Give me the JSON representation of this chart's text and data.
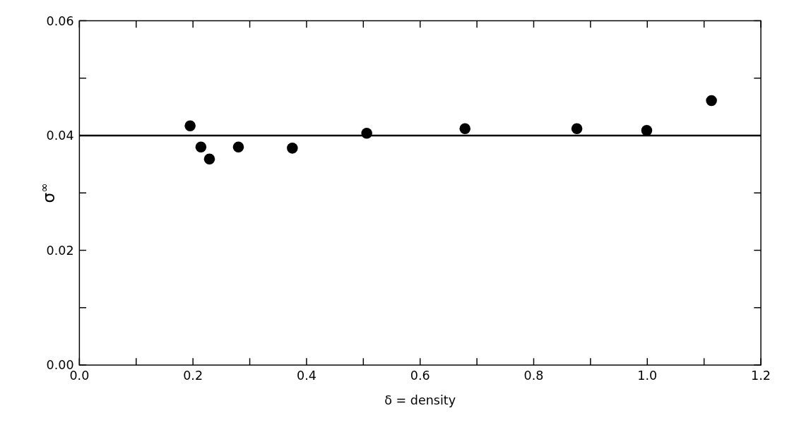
{
  "chart_data": {
    "type": "scatter",
    "xlabel": "δ = density",
    "ylabel": "σ$^{∞}$",
    "marker": "circle",
    "grid": false,
    "xlim": [
      0,
      1.2
    ],
    "ylim": [
      0,
      0.06
    ],
    "xticks": [
      {
        "value": 0,
        "label": "0.0"
      },
      {
        "value": 0.1,
        "label": null
      },
      {
        "value": 0.2,
        "label": "0.2"
      },
      {
        "value": 0.3,
        "label": null
      },
      {
        "value": 0.4,
        "label": "0.4"
      },
      {
        "value": 0.5,
        "label": null
      },
      {
        "value": 0.6,
        "label": "0.6"
      },
      {
        "value": 0.7,
        "label": null
      },
      {
        "value": 0.8,
        "label": "0.8"
      },
      {
        "value": 0.9,
        "label": null
      },
      {
        "value": 1.0,
        "label": "1.0"
      },
      {
        "value": 1.1,
        "label": null
      },
      {
        "value": 1.2,
        "label": "1.2"
      }
    ],
    "yticks": [
      {
        "value": 0,
        "label": "0.00"
      },
      {
        "value": 0.01,
        "label": null
      },
      {
        "value": 0.02,
        "label": "0.02"
      },
      {
        "value": 0.03,
        "label": null
      },
      {
        "value": 0.04,
        "label": "0.04"
      },
      {
        "value": 0.05,
        "label": null
      },
      {
        "value": 0.06,
        "label": "0.06"
      }
    ],
    "x": [
      0.195,
      0.214,
      0.229,
      0.28,
      0.375,
      0.506,
      0.679,
      0.876,
      0.999,
      1.113
    ],
    "series": [
      {
        "color": "#000000",
        "values": [
          0.0417,
          0.038,
          0.0359,
          0.038,
          0.0378,
          0.0404,
          0.0412,
          0.0412,
          0.0409,
          0.0461
        ]
      }
    ],
    "ref_lines": [
      {
        "axis": "y",
        "value": 0.04,
        "color": "#000000",
        "line_style": "solid"
      }
    ]
  }
}
